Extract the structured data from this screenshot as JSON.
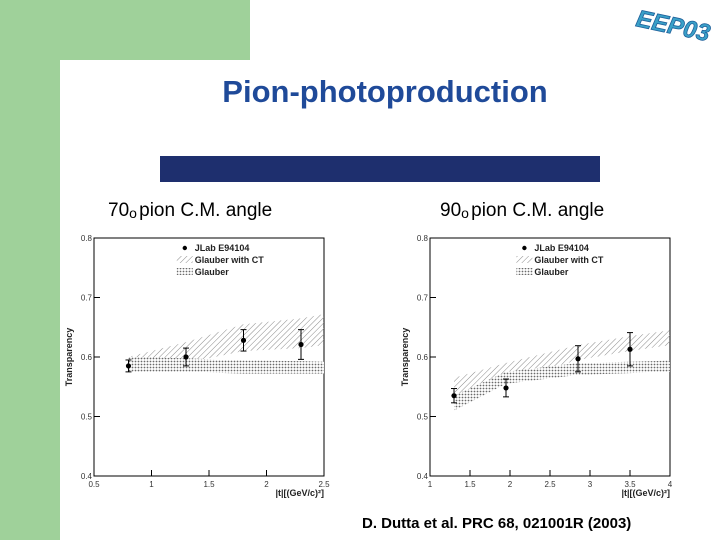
{
  "slide": {
    "title": "Pion-photoproduction",
    "logo_text": "EEP03",
    "citation": "D. Dutta et al. PRC 68,  021001R (2003)",
    "colors": {
      "title": "#1f4a99",
      "rule": "#1e2f6e",
      "green": "#9fd19a"
    }
  },
  "chart_data": [
    {
      "type": "scatter",
      "panel_label": {
        "angle": "70",
        "degree": "o",
        "text": "pion C.M. angle"
      },
      "ylabel": "Transparency",
      "xlabel": "|t|[(GeV/c)²]",
      "xlim": [
        0.5,
        2.5
      ],
      "ylim": [
        0.4,
        0.8
      ],
      "x_ticks": [
        "0.5",
        "1",
        "1.5",
        "2",
        "2.5"
      ],
      "y_ticks": [
        "0.4",
        "0.5",
        "0.6",
        "0.7",
        "0.8"
      ],
      "legend": {
        "placement": "top-right",
        "entries": [
          "JLab E94104",
          "Glauber with CT",
          "Glauber"
        ]
      },
      "series": [
        {
          "name": "JLab E94104",
          "x": [
            0.8,
            1.3,
            1.8,
            2.3
          ],
          "y": [
            0.585,
            0.6,
            0.628,
            0.621
          ],
          "err": [
            0.01,
            0.015,
            0.018,
            0.025
          ]
        },
        {
          "name": "Glauber with CT",
          "x": [
            0.8,
            1.3,
            1.8,
            2.3,
            2.5
          ],
          "low": [
            0.58,
            0.59,
            0.61,
            0.615,
            0.62
          ],
          "high": [
            0.6,
            0.625,
            0.655,
            0.665,
            0.672
          ]
        },
        {
          "name": "Glauber",
          "x": [
            0.8,
            1.3,
            1.8,
            2.3,
            2.5
          ],
          "low": [
            0.575,
            0.575,
            0.572,
            0.572,
            0.572
          ],
          "high": [
            0.6,
            0.598,
            0.594,
            0.593,
            0.592
          ]
        }
      ]
    },
    {
      "type": "scatter",
      "panel_label": {
        "angle": "90",
        "degree": "o",
        "text": "pion C.M. angle"
      },
      "ylabel": "Transparency",
      "xlabel": "|t|[(GeV/c)²]",
      "xlim": [
        1,
        4
      ],
      "ylim": [
        0.4,
        0.8
      ],
      "x_ticks": [
        "1",
        "1.5",
        "2",
        "2.5",
        "3",
        "3.5",
        "4"
      ],
      "y_ticks": [
        "0.4",
        "0.5",
        "0.6",
        "0.7",
        "0.8"
      ],
      "legend": {
        "placement": "top-right",
        "entries": [
          "JLab E94104",
          "Glauber with CT",
          "Glauber"
        ]
      },
      "series": [
        {
          "name": "JLab E94104",
          "x": [
            1.3,
            1.95,
            2.85,
            3.5
          ],
          "y": [
            0.535,
            0.548,
            0.597,
            0.613
          ],
          "err": [
            0.012,
            0.015,
            0.022,
            0.028
          ]
        },
        {
          "name": "Glauber with CT",
          "x": [
            1.3,
            1.95,
            2.85,
            3.5,
            4
          ],
          "low": [
            0.53,
            0.56,
            0.595,
            0.61,
            0.62
          ],
          "high": [
            0.565,
            0.59,
            0.62,
            0.635,
            0.645
          ]
        },
        {
          "name": "Glauber",
          "x": [
            1.3,
            1.95,
            2.85,
            3.5,
            4
          ],
          "low": [
            0.51,
            0.555,
            0.57,
            0.573,
            0.575
          ],
          "high": [
            0.535,
            0.575,
            0.59,
            0.592,
            0.594
          ]
        }
      ]
    }
  ]
}
